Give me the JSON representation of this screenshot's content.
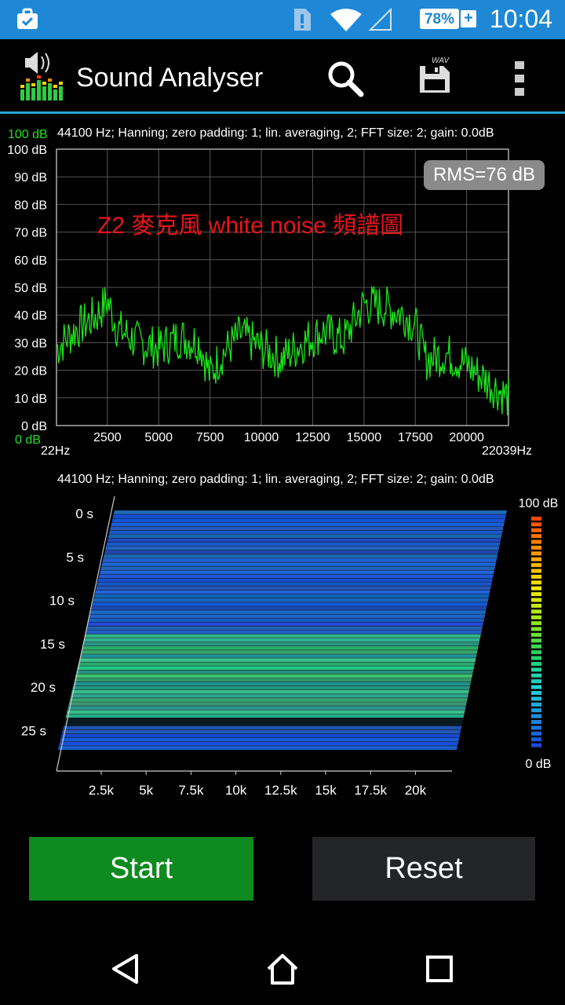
{
  "status_bar": {
    "time": "10:04",
    "battery": "78%",
    "battery_plus": "+",
    "icons": [
      "briefcase-icon",
      "sim-alert-icon",
      "wifi-icon",
      "cellular-signal-icon",
      "battery-charging-icon"
    ]
  },
  "app": {
    "title": "Sound Analyser",
    "actions": [
      "search-icon",
      "save-wav-icon",
      "overflow-menu-icon"
    ],
    "wav_label": "WAV"
  },
  "spectrum": {
    "info": "44100 Hz; Hanning; zero padding: 1; lin. averaging, 2; FFT size: 2; gain: 0.0dB",
    "y_top_green": "100 dB",
    "y_bottom_green": "0 dB",
    "y_ticks": [
      "100 dB",
      "90 dB",
      "80 dB",
      "70 dB",
      "60 dB",
      "50 dB",
      "40 dB",
      "30 dB",
      "20 dB",
      "10 dB",
      "0 dB"
    ],
    "x_ticks": [
      "2500",
      "5000",
      "7500",
      "10000",
      "12500",
      "15000",
      "17500",
      "20000"
    ],
    "x_min_label": "22Hz",
    "x_max_label": "22039Hz",
    "rms": "RMS=76 dB",
    "annotation": "Z2 麥克風 white noise 頻譜圖",
    "line_color": "#19e619"
  },
  "spectrogram": {
    "info": "44100 Hz; Hanning; zero padding: 1; lin. averaging, 2; FFT size: 2; gain: 0.0dB",
    "time_ticks": [
      "0 s",
      "5 s",
      "10 s",
      "15 s",
      "20 s",
      "25 s"
    ],
    "freq_ticks": [
      "2.5k",
      "5k",
      "7.5k",
      "10k",
      "12.5k",
      "15k",
      "17.5k",
      "20k"
    ],
    "scale_top": "100 dB",
    "scale_bottom": "0 dB"
  },
  "chart_data": {
    "type": "line",
    "title": "",
    "xlabel": "",
    "ylabel": "",
    "xlim": [
      22,
      22039
    ],
    "ylim": [
      0,
      100
    ],
    "series": [
      {
        "x": [
          22,
          1000,
          2000,
          2500,
          3000,
          4000,
          5000,
          6000,
          7000,
          7500,
          8000,
          9000,
          10000,
          11000,
          12000,
          13000,
          14000,
          15000,
          16000,
          17000,
          17500,
          18000,
          19000,
          20000,
          21000,
          22039
        ],
        "values": [
          28,
          35,
          40,
          45,
          35,
          30,
          28,
          32,
          30,
          18,
          25,
          33,
          28,
          24,
          30,
          34,
          31,
          44,
          43,
          40,
          36,
          24,
          26,
          22,
          16,
          10
        ]
      }
    ]
  },
  "buttons": {
    "start": "Start",
    "reset": "Reset"
  },
  "nav": [
    "back-icon",
    "home-icon",
    "recents-icon"
  ]
}
